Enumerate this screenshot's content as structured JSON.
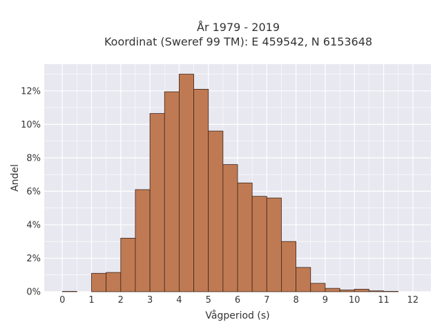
{
  "chart_data": {
    "type": "bar",
    "title_line1": "År 1979 - 2019",
    "title_line2": "Koordinat (Sweref 99 TM): E 459542, N 6153648",
    "xlabel": "Vågperiod (s)",
    "ylabel": "Andel",
    "bin_edges": [
      0,
      0.5,
      1,
      1.5,
      2,
      2.5,
      3,
      3.5,
      4,
      4.5,
      5,
      5.5,
      6,
      6.5,
      7,
      7.5,
      8,
      8.5,
      9,
      9.5,
      10,
      10.5,
      11,
      11.5,
      12
    ],
    "values": [
      0.02,
      0.0,
      1.1,
      1.15,
      3.2,
      6.1,
      10.65,
      11.95,
      13.0,
      12.1,
      9.6,
      7.6,
      6.5,
      5.7,
      5.6,
      3.0,
      1.45,
      0.5,
      0.2,
      0.1,
      0.15,
      0.05,
      0.02,
      0.0
    ],
    "x_ticks": [
      "0",
      "1",
      "2",
      "3",
      "4",
      "5",
      "6",
      "7",
      "8",
      "9",
      "10",
      "11",
      "12"
    ],
    "y_ticks": [
      "0%",
      "2%",
      "4%",
      "6%",
      "8%",
      "10%",
      "12%"
    ],
    "xlim": [
      -0.62,
      12.62
    ],
    "ylim": [
      0,
      13.6
    ],
    "grid": true,
    "bar_color": "#c07a53",
    "bar_edge_color": "#3a2418",
    "plot_background": "#e8e8f0",
    "grid_color": "#ffffff"
  }
}
